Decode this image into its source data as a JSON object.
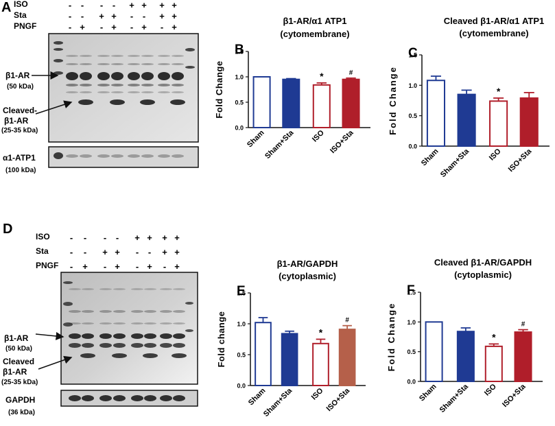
{
  "panels": {
    "A": {
      "letter": "A",
      "row_labels": [
        "ISO",
        "Sta",
        "PNGF"
      ],
      "lane_signs": [
        [
          "-",
          "-",
          "-",
          "-",
          "+",
          "+",
          "+",
          "+"
        ],
        [
          "-",
          "-",
          "+",
          "+",
          "-",
          "-",
          "+",
          "+"
        ],
        [
          "-",
          "+",
          "-",
          "+",
          "-",
          "+",
          "-",
          "+"
        ]
      ],
      "band_labels": {
        "b1ar": "β1-AR",
        "b1ar_kda": "(50 kDa)",
        "cleaved_1": "Cleaved-",
        "cleaved_2": "β1-AR",
        "cleaved_kda": "(25-35 kDa)",
        "loading": "α1-ATP1",
        "loading_kda": "(100 kDa)"
      }
    },
    "D": {
      "letter": "D",
      "row_labels": [
        "ISO",
        "Sta",
        "PNGF"
      ],
      "lane_signs": [
        [
          "-",
          "-",
          "-",
          "-",
          "+",
          "+",
          "+",
          "+"
        ],
        [
          "-",
          "-",
          "+",
          "+",
          "-",
          "-",
          "+",
          "+"
        ],
        [
          "-",
          "+",
          "-",
          "+",
          "-",
          "+",
          "-",
          "+"
        ]
      ],
      "band_labels": {
        "b1ar": "β1-AR",
        "b1ar_kda": "(50 kDa)",
        "cleaved_1": "Cleaved",
        "cleaved_2": "β1-AR",
        "cleaved_kda": "(25-35 kDa)",
        "loading": "GAPDH",
        "loading_kda": "(36 kDa)"
      }
    }
  },
  "chart_data": [
    {
      "panel": "B",
      "type": "bar",
      "title_lines": [
        "β1-AR/α1 ATP1",
        "(cytomembrane)"
      ],
      "ylabel": "Fold  Change",
      "ylim": [
        0,
        1.5
      ],
      "yticks": [
        "0.0",
        "0.5",
        "1.0",
        "1.5"
      ],
      "categories": [
        "Sham",
        "Sham+Sta",
        "ISO",
        "ISO+Sta"
      ],
      "values": [
        1.0,
        0.95,
        0.84,
        0.95
      ],
      "errors": [
        0.0,
        0.015,
        0.04,
        0.025
      ],
      "annotations": [
        "",
        "",
        "*",
        "#"
      ],
      "colors": [
        "#1f3a93",
        "#1f3a93",
        "#b01e2a",
        "#b01e2a"
      ],
      "filled": [
        false,
        true,
        false,
        true
      ]
    },
    {
      "panel": "C",
      "type": "bar",
      "title_lines": [
        "Cleaved β1-AR/α1 ATP1",
        "(cytomembrane)"
      ],
      "ylabel": "Fold Change",
      "ylim": [
        0,
        1.5
      ],
      "yticks": [
        "0.0",
        "0.5",
        "1.0",
        "1.5"
      ],
      "categories": [
        "Sham",
        "Sham+Sta",
        "ISO",
        "ISO+Sta"
      ],
      "values": [
        1.08,
        0.85,
        0.74,
        0.79
      ],
      "errors": [
        0.07,
        0.07,
        0.05,
        0.09
      ],
      "annotations": [
        "",
        "",
        "*",
        ""
      ],
      "colors": [
        "#1f3a93",
        "#1f3a93",
        "#b01e2a",
        "#b01e2a"
      ],
      "filled": [
        false,
        true,
        false,
        true
      ]
    },
    {
      "panel": "E",
      "type": "bar",
      "title_lines": [
        "β1-AR/GAPDH",
        "(cytoplasmic)"
      ],
      "ylabel": "Fold change",
      "ylim": [
        0,
        1.5
      ],
      "yticks": [
        "0.0",
        "0.5",
        "1.0",
        "1.5"
      ],
      "categories": [
        "Sham",
        "Sham+Sta",
        "ISO",
        "ISO+Sta"
      ],
      "values": [
        1.02,
        0.84,
        0.68,
        0.91
      ],
      "errors": [
        0.08,
        0.04,
        0.07,
        0.06
      ],
      "annotations": [
        "",
        "",
        "*",
        "#"
      ],
      "colors": [
        "#1f3a93",
        "#1f3a93",
        "#b01e2a",
        "#b5604a"
      ],
      "filled": [
        false,
        true,
        false,
        true
      ]
    },
    {
      "panel": "F",
      "type": "bar",
      "title_lines": [
        "Cleaved β1-AR/GAPDH",
        "(cytoplasmic)"
      ],
      "ylabel": "Fold Change",
      "ylim": [
        0,
        1.5
      ],
      "yticks": [
        "0.0",
        "0.5",
        "1.0",
        "1.5"
      ],
      "categories": [
        "Sham",
        "Sham+Sta",
        "ISO",
        "ISO+Sta"
      ],
      "values": [
        1.0,
        0.84,
        0.59,
        0.83
      ],
      "errors": [
        0.0,
        0.06,
        0.04,
        0.04
      ],
      "annotations": [
        "",
        "",
        "*",
        "#"
      ],
      "colors": [
        "#1f3a93",
        "#1f3a93",
        "#b01e2a",
        "#b01e2a"
      ],
      "filled": [
        false,
        true,
        false,
        true
      ]
    }
  ]
}
